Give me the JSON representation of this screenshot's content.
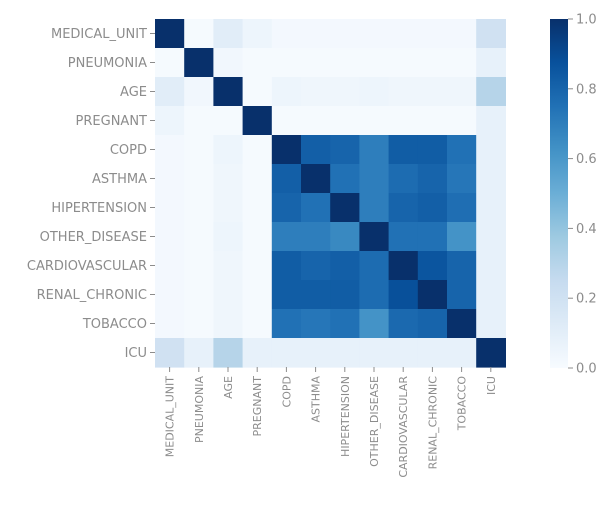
{
  "chart_data": {
    "type": "heatmap",
    "rows": [
      "MEDICAL_UNIT",
      "PNEUMONIA",
      "AGE",
      "PREGNANT",
      "COPD",
      "ASTHMA",
      "HIPERTENSION",
      "OTHER_DISEASE",
      "CARDIOVASCULAR",
      "RENAL_CHRONIC",
      "TOBACCO",
      "ICU"
    ],
    "columns": [
      "MEDICAL_UNIT",
      "PNEUMONIA",
      "AGE",
      "PREGNANT",
      "COPD",
      "ASTHMA",
      "HIPERTENSION",
      "OTHER_DISEASE",
      "CARDIOVASCULAR",
      "RENAL_CHRONIC",
      "TOBACCO",
      "ICU"
    ],
    "values": [
      [
        1.0,
        0.01,
        0.11,
        0.05,
        0.02,
        0.02,
        0.02,
        0.02,
        0.02,
        0.02,
        0.02,
        0.2
      ],
      [
        0.01,
        1.0,
        0.03,
        0.01,
        0.01,
        0.01,
        0.01,
        0.01,
        0.01,
        0.01,
        0.01,
        0.08
      ],
      [
        0.11,
        0.03,
        1.0,
        0.01,
        0.05,
        0.04,
        0.04,
        0.05,
        0.04,
        0.04,
        0.04,
        0.3
      ],
      [
        0.05,
        0.01,
        0.01,
        1.0,
        0.01,
        0.01,
        0.01,
        0.01,
        0.01,
        0.01,
        0.01,
        0.08
      ],
      [
        0.02,
        0.01,
        0.05,
        0.01,
        1.0,
        0.82,
        0.8,
        0.7,
        0.83,
        0.83,
        0.75,
        0.08
      ],
      [
        0.02,
        0.01,
        0.04,
        0.01,
        0.82,
        1.0,
        0.75,
        0.7,
        0.77,
        0.8,
        0.73,
        0.08
      ],
      [
        0.02,
        0.01,
        0.04,
        0.01,
        0.8,
        0.75,
        1.0,
        0.7,
        0.8,
        0.82,
        0.76,
        0.08
      ],
      [
        0.02,
        0.01,
        0.05,
        0.01,
        0.7,
        0.7,
        0.66,
        1.0,
        0.75,
        0.75,
        0.62,
        0.08
      ],
      [
        0.02,
        0.01,
        0.04,
        0.01,
        0.83,
        0.8,
        0.82,
        0.77,
        1.0,
        0.86,
        0.8,
        0.08
      ],
      [
        0.02,
        0.01,
        0.04,
        0.01,
        0.83,
        0.83,
        0.83,
        0.77,
        0.88,
        1.0,
        0.8,
        0.08
      ],
      [
        0.02,
        0.01,
        0.04,
        0.01,
        0.75,
        0.73,
        0.75,
        0.62,
        0.78,
        0.8,
        1.0,
        0.08
      ],
      [
        0.2,
        0.08,
        0.3,
        0.08,
        0.08,
        0.08,
        0.08,
        0.08,
        0.08,
        0.08,
        0.08,
        1.0
      ]
    ],
    "vmin": 0.0,
    "vmax": 1.0,
    "colormap": "Blues",
    "colorbar_ticks": [
      "0.0",
      "0.2",
      "0.4",
      "0.6",
      "0.8",
      "1.0"
    ],
    "colorbar_tick_values": [
      0.0,
      0.2,
      0.4,
      0.6,
      0.8,
      1.0
    ],
    "grid": false,
    "legend": "colorbar-right"
  },
  "colors": {
    "label": "#8c8c8c",
    "cmap_stops": [
      "#f7fbff",
      "#deebf7",
      "#c6dbef",
      "#9ecae1",
      "#6baed6",
      "#4292c6",
      "#2171b5",
      "#08519c",
      "#08306b"
    ]
  }
}
